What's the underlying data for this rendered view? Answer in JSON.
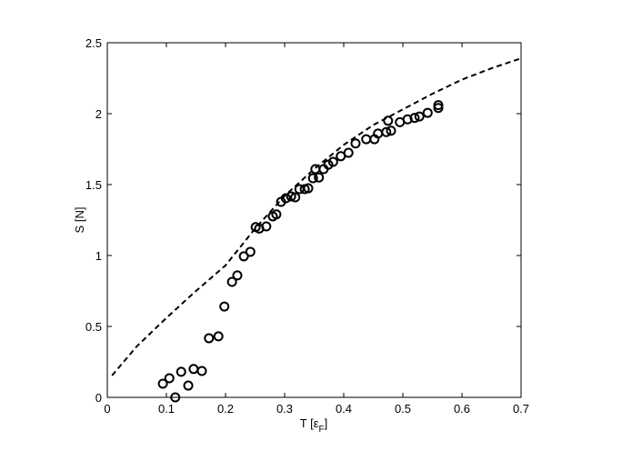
{
  "chart_data": {
    "type": "scatter",
    "x_label": {
      "text": "T [ε",
      "sub": "F",
      "end": "]"
    },
    "y_label": "S [N]",
    "xlim": [
      0,
      0.7
    ],
    "xticks": [
      0,
      0.1,
      0.2,
      0.3,
      0.4,
      0.5,
      0.6,
      0.7
    ],
    "ylim": [
      0,
      2.5
    ],
    "yticks": [
      0,
      0.5,
      1,
      1.5,
      2,
      2.5
    ],
    "grid": false,
    "series": [
      {
        "kind": "line",
        "style": "dashed",
        "color": "#000000",
        "x": [
          0.008,
          0.05,
          0.1,
          0.15,
          0.2,
          0.25,
          0.3,
          0.35,
          0.4,
          0.45,
          0.5,
          0.55,
          0.6,
          0.65,
          0.7
        ],
        "values": [
          0.154,
          0.36,
          0.56,
          0.75,
          0.93,
          1.19,
          1.42,
          1.61,
          1.78,
          1.92,
          2.03,
          2.14,
          2.24,
          2.32,
          2.39
        ]
      },
      {
        "kind": "scatter",
        "marker": "circle",
        "color": "#000000",
        "x": [
          0.094,
          0.105,
          0.115,
          0.125,
          0.137,
          0.146,
          0.16,
          0.172,
          0.188,
          0.198,
          0.211,
          0.22,
          0.231,
          0.242,
          0.251,
          0.257,
          0.269,
          0.28,
          0.286,
          0.294,
          0.302,
          0.311,
          0.318,
          0.325,
          0.334,
          0.34,
          0.348,
          0.352,
          0.358,
          0.366,
          0.374,
          0.382,
          0.395,
          0.408,
          0.42,
          0.438,
          0.452,
          0.458,
          0.472,
          0.475,
          0.48,
          0.495,
          0.508,
          0.52,
          0.528,
          0.542,
          0.56,
          0.56
        ],
        "values": [
          0.096,
          0.135,
          0,
          0.18,
          0.083,
          0.2,
          0.186,
          0.417,
          0.43,
          0.64,
          0.814,
          0.86,
          0.994,
          1.026,
          1.2,
          1.19,
          1.205,
          1.276,
          1.29,
          1.378,
          1.404,
          1.417,
          1.41,
          1.468,
          1.468,
          1.474,
          1.545,
          1.609,
          1.55,
          1.609,
          1.64,
          1.66,
          1.7,
          1.724,
          1.79,
          1.82,
          1.82,
          1.86,
          1.87,
          1.95,
          1.88,
          1.94,
          1.96,
          1.97,
          1.98,
          2.006,
          2.04,
          2.06
        ]
      }
    ]
  }
}
